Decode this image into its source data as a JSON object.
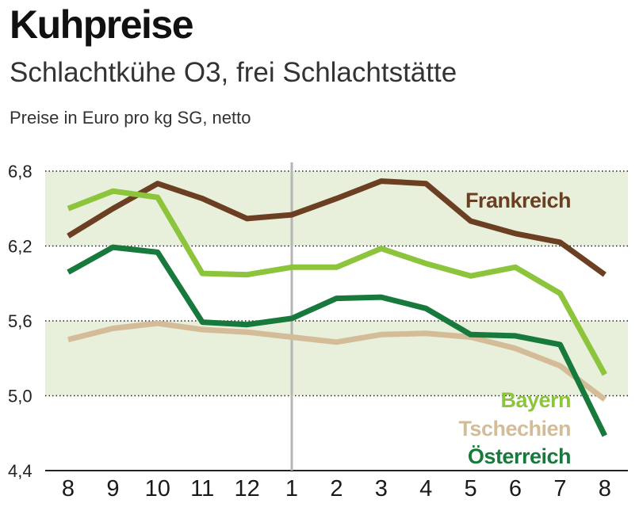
{
  "title": "Kuhpreise",
  "subtitle": "Schlachtkühe O3, frei Schlachtstätte",
  "unit_label": "Preise in Euro pro kg SG, netto",
  "colors": {
    "band": "#e8efdb",
    "divider": "#b5b5b5",
    "grid": "#222222"
  },
  "chart_data": {
    "type": "line",
    "categories": [
      "8",
      "9",
      "10",
      "11",
      "12",
      "1",
      "2",
      "3",
      "4",
      "5",
      "6",
      "7",
      "8"
    ],
    "ylim": [
      4.4,
      6.8
    ],
    "yticks": [
      "6,8",
      "6,2",
      "5,6",
      "5,0",
      "4,4"
    ],
    "ytick_values": [
      6.8,
      6.2,
      5.6,
      5.0,
      4.4
    ],
    "shaded_bands": [
      [
        6.2,
        6.8
      ],
      [
        5.0,
        5.6
      ]
    ],
    "year_divider_index": 5,
    "legend_position": "right",
    "series": [
      {
        "name": "Frankreich",
        "color": "#6b3f22",
        "values": [
          6.28,
          6.5,
          6.7,
          6.58,
          6.42,
          6.45,
          6.58,
          6.72,
          6.7,
          6.4,
          6.3,
          6.23,
          5.97
        ]
      },
      {
        "name": "Bayern",
        "color": "#8cc43c",
        "values": [
          6.5,
          6.64,
          6.59,
          5.98,
          5.97,
          6.03,
          6.03,
          6.18,
          6.06,
          5.96,
          6.03,
          5.82,
          5.17
        ]
      },
      {
        "name": "Tschechien",
        "color": "#d4bc98",
        "values": [
          5.45,
          5.54,
          5.58,
          5.53,
          5.51,
          5.47,
          5.43,
          5.49,
          5.5,
          5.47,
          5.38,
          5.24,
          4.97
        ]
      },
      {
        "name": "Österreich",
        "color": "#177a3c",
        "values": [
          5.99,
          6.19,
          6.15,
          5.59,
          5.57,
          5.62,
          5.78,
          5.79,
          5.7,
          5.49,
          5.48,
          5.41,
          4.68
        ]
      }
    ]
  }
}
